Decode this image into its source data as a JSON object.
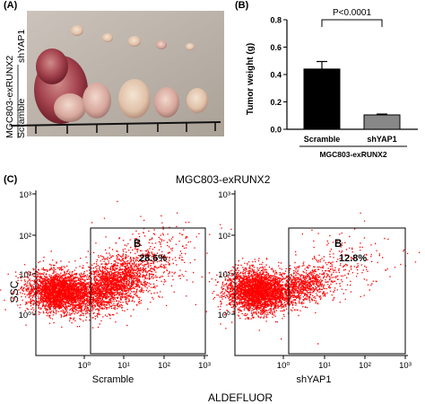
{
  "panel_a": {
    "letter": "(A)",
    "construct_label": "MGC803-exRUNX2",
    "group_top": "shYAP1",
    "group_bottom": "Scramble"
  },
  "panel_b": {
    "letter": "(B)"
  },
  "panel_c": {
    "letter": "(C)",
    "title": "MGC803-exRUNX2",
    "ylabel": "SSC",
    "xlabel": "ALDEFLUOR",
    "plots": [
      {
        "name": "Scramble",
        "gate": "B",
        "percent": "28.6%"
      },
      {
        "name": "shYAP1",
        "gate": "B",
        "percent": "12.8%"
      }
    ],
    "x_ticks": [
      "10⁰",
      "10¹",
      "10²",
      "10³"
    ],
    "y_ticks": [
      "10³",
      "10²",
      "10¹",
      "10⁰"
    ],
    "dot_color": "#ff0000"
  },
  "chart_data": {
    "type": "bar",
    "categories": [
      "Scramble",
      "shYAP1"
    ],
    "values": [
      0.44,
      0.105
    ],
    "errors": [
      0.055,
      0.006
    ],
    "colors": [
      "#000000",
      "#888888"
    ],
    "ylabel": "Tumor weight (g)",
    "xlabel": "MGC803-exRUNX2",
    "ylim": [
      0,
      0.8
    ],
    "yticks": [
      "0.0",
      "0.2",
      "0.4",
      "0.6",
      "0.8"
    ],
    "yticks_values": [
      0,
      0.2,
      0.4,
      0.6,
      0.8
    ],
    "annotation": "P<0.0001"
  }
}
